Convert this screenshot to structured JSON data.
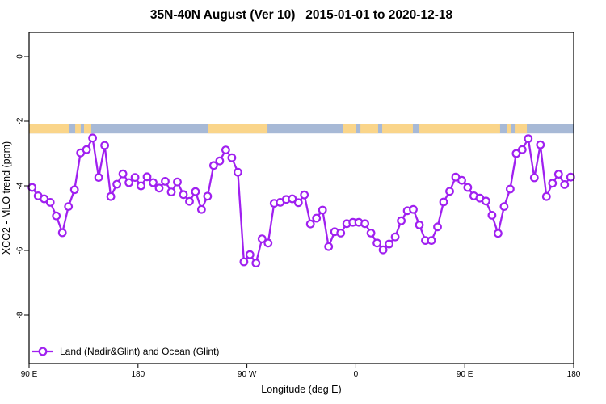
{
  "title": "35N-40N August (Ver 10)   2015-01-01 to 2020-12-18",
  "chart_data": {
    "type": "line",
    "title": "35N-40N August (Ver 10)   2015-01-01 to 2020-12-18",
    "xlabel": "Longitude (deg E)",
    "ylabel": "XCO2 - MLO trend (ppm)",
    "legend_label": "Land (Nadir&Glint) and Ocean (Glint)",
    "legend_position": "bottom-left",
    "grid": "off",
    "xlim": [
      90,
      540
    ],
    "ylim": [
      -9.5,
      0.75
    ],
    "x_ticks": [
      {
        "v": 90,
        "label": "90 E"
      },
      {
        "v": 180,
        "label": "180"
      },
      {
        "v": 270,
        "label": "90 W"
      },
      {
        "v": 360,
        "label": "0"
      },
      {
        "v": 450,
        "label": "90 E"
      },
      {
        "v": 540,
        "label": "180"
      }
    ],
    "y_ticks": [
      {
        "v": 0,
        "label": "0"
      },
      {
        "v": -2,
        "label": "-2"
      },
      {
        "v": -4,
        "label": "-4"
      },
      {
        "v": -6,
        "label": "-6"
      },
      {
        "v": -8,
        "label": "-8"
      }
    ],
    "series": [
      {
        "name": "Land (Nadir&Glint) and Ocean (Glint)",
        "marker": "open-circle",
        "x_start": 92.5,
        "x_step": 5,
        "values": [
          -4.05,
          -4.31,
          -4.4,
          -4.51,
          -4.93,
          -5.45,
          -4.64,
          -4.12,
          -2.98,
          -2.88,
          -2.52,
          -3.74,
          -2.75,
          -4.33,
          -3.95,
          -3.63,
          -3.9,
          -3.74,
          -4.0,
          -3.72,
          -3.9,
          -4.07,
          -3.86,
          -4.19,
          -3.88,
          -4.27,
          -4.48,
          -4.18,
          -4.73,
          -4.32,
          -3.37,
          -3.23,
          -2.89,
          -3.13,
          -3.58,
          -6.35,
          -6.13,
          -6.39,
          -5.64,
          -5.77,
          -4.54,
          -4.51,
          -4.42,
          -4.4,
          -4.52,
          -4.28,
          -5.18,
          -5.0,
          -4.75,
          -5.88,
          -5.42,
          -5.46,
          -5.17,
          -5.13,
          -5.13,
          -5.17,
          -5.46,
          -5.77,
          -5.98,
          -5.8,
          -5.58,
          -5.08,
          -4.77,
          -4.73,
          -5.21,
          -5.69,
          -5.69,
          -5.27,
          -4.5,
          -4.17,
          -3.73,
          -3.83,
          -4.05,
          -4.31,
          -4.38,
          -4.47,
          -4.91,
          -5.47,
          -4.64,
          -4.1,
          -3.0,
          -2.88,
          -2.54,
          -3.75,
          -2.73,
          -4.33,
          -3.92,
          -3.64,
          -3.96,
          -3.73
        ]
      }
    ],
    "map_strip": {
      "description": "land-ocean strip along 35N-40N",
      "y_range": [
        -2.38,
        -2.08
      ],
      "ocean_span": [
        90,
        540
      ],
      "land_segments": [
        [
          90,
          122.7
        ],
        [
          128.1,
          132.7
        ],
        [
          135.4,
          141.4
        ],
        [
          238.2,
          287.0
        ],
        [
          349.1,
          360.4
        ],
        [
          363.8,
          378.4
        ],
        [
          381.8,
          407.1
        ],
        [
          412.5,
          479.2
        ],
        [
          484.6,
          488.6
        ],
        [
          491.3,
          501.3
        ]
      ]
    },
    "colors": {
      "line": "#A020F0",
      "marker_fill": "#FFFFFF",
      "land": "#FAD58A",
      "ocean": "#A7B9D6",
      "axis": "#000000"
    }
  }
}
